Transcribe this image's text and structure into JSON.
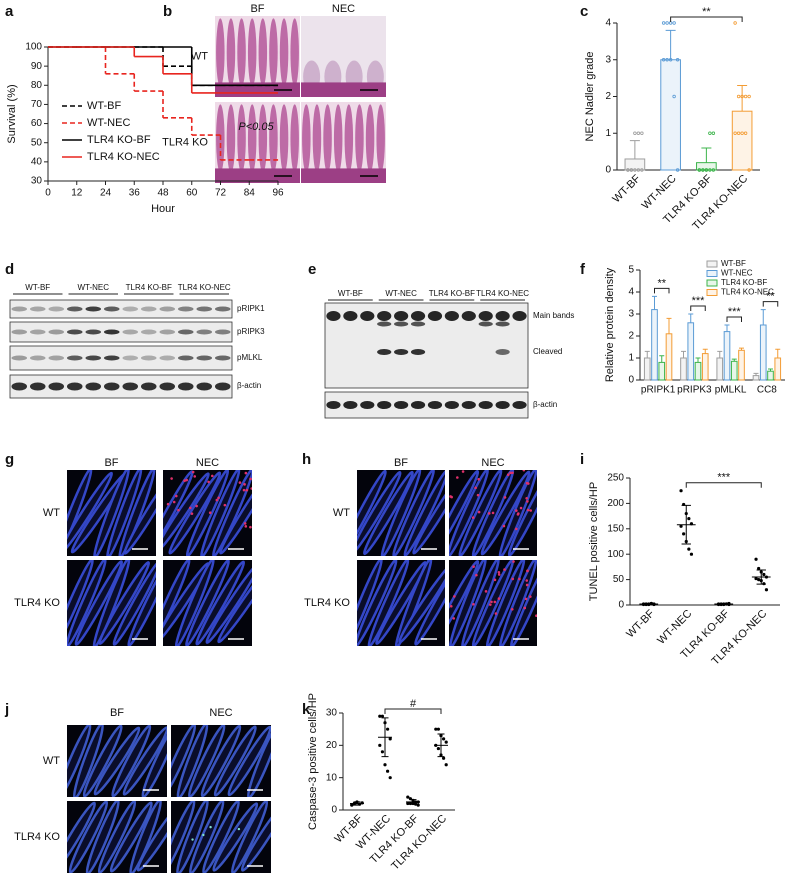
{
  "chart_data": [
    {
      "panel": "a",
      "type": "line",
      "ylabel": "Survival (%)",
      "xlabel": "Hour",
      "annotation": "P<0.05",
      "legend": "center left",
      "x": [
        0,
        12,
        24,
        36,
        48,
        60,
        72,
        84,
        96
      ],
      "xlim": [
        0,
        96
      ],
      "xticks": [
        0,
        12,
        24,
        36,
        48,
        60,
        72,
        84,
        96
      ],
      "ylim": [
        30,
        100
      ],
      "yticks": [
        30,
        40,
        50,
        60,
        70,
        80,
        90,
        100
      ],
      "series": [
        {
          "name": "WT-BF",
          "color": "#000000",
          "dash": true,
          "values": [
            100,
            100,
            100,
            100,
            90,
            80,
            80,
            80,
            80
          ]
        },
        {
          "name": "WT-NEC",
          "color": "#e8251f",
          "dash": true,
          "values": [
            100,
            100,
            86,
            77,
            63,
            54,
            41,
            41,
            41
          ]
        },
        {
          "name": "TLR4 KO-BF",
          "color": "#000000",
          "dash": false,
          "values": [
            100,
            100,
            100,
            100,
            100,
            80,
            80,
            80,
            80
          ]
        },
        {
          "name": "TLR4 KO-NEC",
          "color": "#e8251f",
          "dash": false,
          "values": [
            100,
            100,
            100,
            95,
            86,
            76,
            76,
            76,
            76
          ]
        }
      ]
    },
    {
      "panel": "c",
      "type": "bar",
      "ylabel": "NEC Nadler grade",
      "categories": [
        "WT-BF",
        "WT-NEC",
        "TLR4 KO-BF",
        "TLR4 KO-NEC"
      ],
      "values": [
        0.3,
        3.0,
        0.2,
        1.6
      ],
      "errors": [
        0.5,
        0.8,
        0.4,
        0.7
      ],
      "colors": [
        "#9e9e9e",
        "#5b9bd5",
        "#3cb44b",
        "#f39c34"
      ],
      "points": [
        [
          0,
          0,
          0,
          0,
          0,
          0,
          0,
          1,
          1,
          1
        ],
        [
          4,
          4,
          4,
          4,
          3,
          3,
          3,
          3,
          2,
          0
        ],
        [
          0,
          0,
          0,
          0,
          0,
          0,
          0,
          0,
          1,
          1
        ],
        [
          4,
          2,
          2,
          2,
          2,
          1,
          1,
          1,
          1,
          0
        ]
      ],
      "ylim": [
        0,
        4
      ],
      "yticks": [
        0,
        1,
        2,
        3,
        4
      ],
      "significance": [
        {
          "label": "**",
          "between": [
            "WT-NEC",
            "TLR4 KO-NEC"
          ]
        }
      ]
    },
    {
      "panel": "f",
      "type": "grouped_bar",
      "ylabel": "Relative protein density",
      "categories": [
        "pRIPK1",
        "pRIPK3",
        "pMLKL",
        "CC8"
      ],
      "legend": "upper right",
      "ylim": [
        0,
        5
      ],
      "yticks": [
        0,
        1,
        2,
        3,
        4,
        5
      ],
      "series": [
        {
          "name": "WT-BF",
          "color": "#9e9e9e",
          "values": [
            1,
            1,
            1,
            0.2
          ],
          "errors": [
            0.3,
            0.3,
            0.3,
            0.1
          ]
        },
        {
          "name": "WT-NEC",
          "color": "#5b9bd5",
          "values": [
            3.2,
            2.6,
            2.2,
            2.5
          ],
          "errors": [
            0.6,
            0.4,
            0.3,
            0.7
          ]
        },
        {
          "name": "TLR4 KO-BF",
          "color": "#3cb44b",
          "values": [
            0.8,
            0.8,
            0.85,
            0.4
          ],
          "errors": [
            0.3,
            0.2,
            0.1,
            0.1
          ]
        },
        {
          "name": "TLR4 KO-NEC",
          "color": "#f39c34",
          "values": [
            2.1,
            1.2,
            1.35,
            1.0
          ],
          "errors": [
            0.7,
            0.2,
            0.1,
            0.4
          ]
        }
      ],
      "significance": [
        "**",
        "***",
        "***",
        "**"
      ],
      "significance_between": [
        "WT-NEC",
        "TLR4 KO-NEC"
      ]
    },
    {
      "panel": "i",
      "type": "dot",
      "ylabel": "TUNEL positive cells/HP",
      "categories": [
        "WT-BF",
        "WT-NEC",
        "TLR4 KO-BF",
        "TLR4 KO-NEC"
      ],
      "color": "#000000",
      "means": [
        2,
        158,
        2,
        55
      ],
      "sd": [
        1,
        38,
        1,
        14
      ],
      "points": [
        [
          1,
          2,
          1,
          3,
          2,
          2,
          1,
          2,
          3,
          1
        ],
        [
          225,
          198,
          180,
          170,
          160,
          155,
          140,
          125,
          110,
          100
        ],
        [
          1,
          2,
          1,
          2,
          3,
          2,
          1,
          2,
          2,
          1
        ],
        [
          90,
          72,
          65,
          60,
          55,
          52,
          50,
          48,
          42,
          30
        ]
      ],
      "ylim": [
        0,
        250
      ],
      "yticks": [
        0,
        50,
        100,
        150,
        200,
        250
      ],
      "significance": [
        {
          "label": "***",
          "between": [
            "WT-NEC",
            "TLR4 KO-NEC"
          ]
        }
      ]
    },
    {
      "panel": "k",
      "type": "dot",
      "ylabel": "Caspase-3 positive cells/HP",
      "categories": [
        "WT-BF",
        "WT-NEC",
        "TLR4 KO-BF",
        "TLR4 KO-NEC"
      ],
      "color": "#000000",
      "means": [
        2,
        22.5,
        2.5,
        20
      ],
      "sd": [
        0.5,
        6,
        0.7,
        3.5
      ],
      "points": [
        [
          1.5,
          2,
          2.5,
          1.8,
          2.2,
          1.6,
          2.0,
          2.4
        ],
        [
          29,
          29,
          27,
          25,
          22,
          20,
          18,
          14,
          12,
          10
        ],
        [
          4,
          3.5,
          3,
          2.5,
          2.5,
          2,
          2,
          2,
          1.8,
          1.5
        ],
        [
          25,
          25,
          23,
          22,
          21,
          20,
          19,
          17,
          16,
          14
        ]
      ],
      "ylim": [
        0,
        30
      ],
      "yticks": [
        0,
        10,
        20,
        30
      ],
      "significance": [
        {
          "label": "#",
          "between": [
            "WT-NEC",
            "TLR4 KO-NEC"
          ]
        }
      ]
    }
  ],
  "image_panels": [
    {
      "panel": "b",
      "columns": [
        "BF",
        "NEC"
      ],
      "rows": [
        "WT",
        "TLR4 KO"
      ]
    },
    {
      "panel": "g",
      "columns": [
        "BF",
        "NEC"
      ],
      "rows": [
        "WT",
        "TLR4 KO"
      ]
    },
    {
      "panel": "h",
      "columns": [
        "BF",
        "NEC"
      ],
      "rows": [
        "WT",
        "TLR4 KO"
      ]
    },
    {
      "panel": "j",
      "columns": [
        "BF",
        "NEC"
      ],
      "rows": [
        "WT",
        "TLR4 KO"
      ]
    }
  ],
  "blots": [
    {
      "panel": "d",
      "groups": [
        "WT-BF",
        "WT-NEC",
        "TLR4 KO-BF",
        "TLR4 KO-NEC"
      ],
      "bands": [
        "pRIPK1",
        "pRIPK3",
        "pMLKL",
        "β-actin"
      ]
    },
    {
      "panel": "e",
      "groups": [
        "WT-BF",
        "WT-NEC",
        "TLR4 KO-BF",
        "TLR4 KO-NEC"
      ],
      "bands": [
        "Main bands",
        "Cleaved",
        "β-actin"
      ]
    }
  ]
}
